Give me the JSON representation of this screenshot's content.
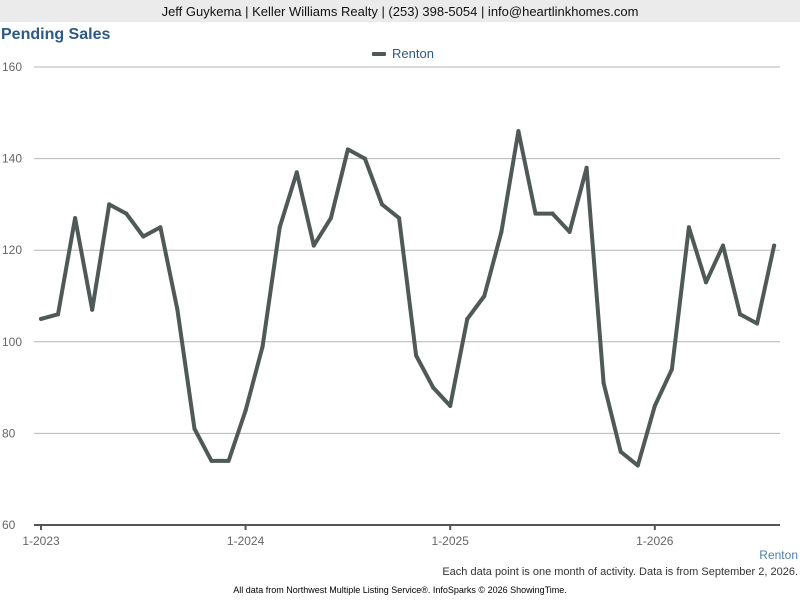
{
  "header": {
    "contact": "Jeff Guykema | Keller Williams Realty | (253) 398-5054 | info@heartlinkhomes.com"
  },
  "footer": {
    "series_label": "Renton",
    "note": "Each data point is one month of activity. Data is from September 2, 2026.",
    "source": "All data from Northwest Multiple Listing Service®. InfoSparks © 2026 ShowingTime."
  },
  "chart_data": {
    "type": "line",
    "title": "Pending Sales",
    "legend_position": "top-center",
    "grid": true,
    "ylim": [
      60,
      160
    ],
    "yticks": [
      60,
      80,
      100,
      120,
      140,
      160
    ],
    "xticks": [
      "1-2023",
      "1-2024",
      "1-2025",
      "1-2026"
    ],
    "x": [
      "1-2023",
      "2-2023",
      "3-2023",
      "4-2023",
      "5-2023",
      "6-2023",
      "7-2023",
      "8-2023",
      "9-2023",
      "10-2023",
      "11-2023",
      "12-2023",
      "1-2024",
      "2-2024",
      "3-2024",
      "4-2024",
      "5-2024",
      "6-2024",
      "7-2024",
      "8-2024",
      "9-2024",
      "10-2024",
      "11-2024",
      "12-2024",
      "1-2025",
      "2-2025",
      "3-2025",
      "4-2025",
      "5-2025",
      "6-2025",
      "7-2025",
      "8-2025",
      "9-2025",
      "10-2025",
      "11-2025",
      "12-2025",
      "1-2026",
      "2-2026",
      "3-2026",
      "4-2026",
      "5-2026",
      "6-2026",
      "7-2026",
      "8-2026"
    ],
    "series": [
      {
        "name": "Renton",
        "color": "#4f5a58",
        "values": [
          105,
          106,
          127,
          107,
          130,
          128,
          123,
          125,
          107,
          81,
          74,
          74,
          85,
          99,
          125,
          137,
          121,
          127,
          142,
          140,
          130,
          127,
          97,
          90,
          86,
          105,
          110,
          124,
          146,
          128,
          128,
          124,
          138,
          91,
          76,
          73,
          86,
          94,
          125,
          113,
          121,
          106,
          104,
          121
        ]
      }
    ]
  }
}
